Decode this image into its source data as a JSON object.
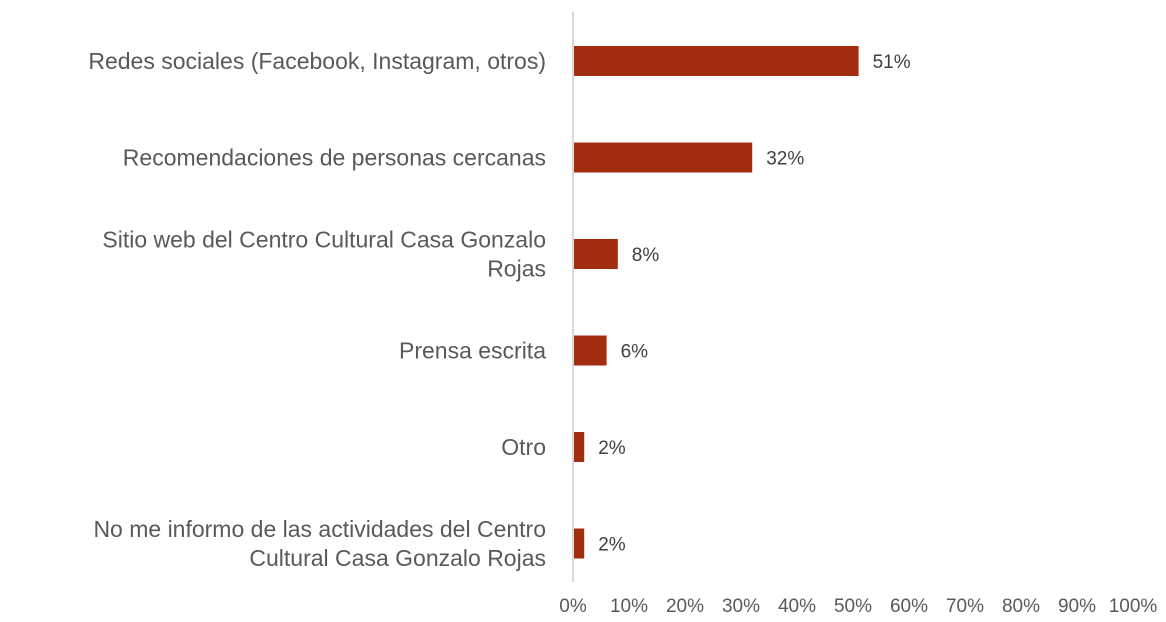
{
  "chart_data": {
    "type": "bar",
    "orientation": "horizontal",
    "categories": [
      [
        "Redes sociales (Facebook, Instagram, otros)"
      ],
      [
        "Recomendaciones de personas cercanas"
      ],
      [
        "Sitio web del Centro Cultural Casa Gonzalo",
        "Rojas"
      ],
      [
        "Prensa escrita"
      ],
      [
        "Otro"
      ],
      [
        "No me informo de las actividades del Centro",
        "Cultural Casa Gonzalo Rojas"
      ]
    ],
    "values": [
      51,
      32,
      8,
      6,
      2,
      2
    ],
    "data_labels": [
      "51%",
      "32%",
      "8%",
      "6%",
      "2%",
      "2%"
    ],
    "xlim": [
      0,
      100
    ],
    "x_ticks": [
      0,
      10,
      20,
      30,
      40,
      50,
      60,
      70,
      80,
      90,
      100
    ],
    "x_tick_labels": [
      "0%",
      "10%",
      "20%",
      "30%",
      "40%",
      "50%",
      "60%",
      "70%",
      "80%",
      "90%",
      "100%"
    ],
    "grid": false,
    "legend": "none",
    "bar_color": "#A32D0F",
    "axis_color": "#D9D9D9"
  }
}
